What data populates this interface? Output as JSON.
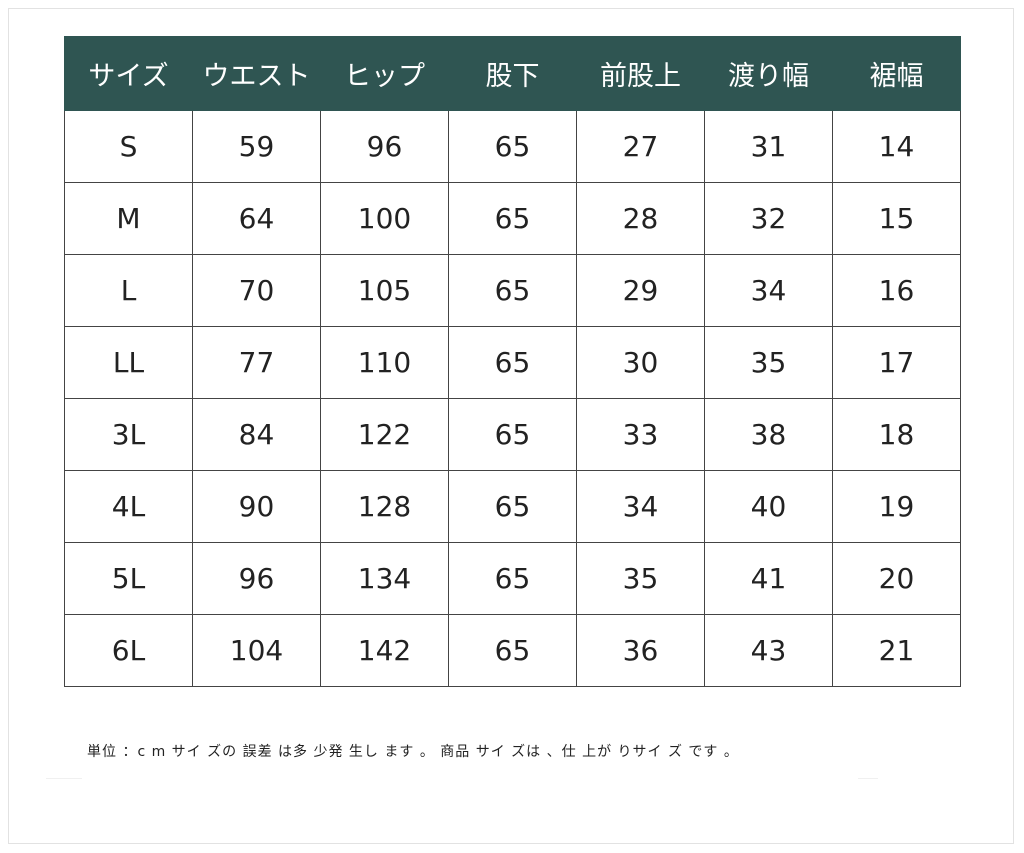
{
  "table": {
    "headers": [
      "サイズ",
      "ウエスト",
      "ヒップ",
      "股下",
      "前股上",
      "渡り幅",
      "裾幅"
    ],
    "rows": [
      [
        "S",
        "59",
        "96",
        "65",
        "27",
        "31",
        "14"
      ],
      [
        "M",
        "64",
        "100",
        "65",
        "28",
        "32",
        "15"
      ],
      [
        "L",
        "70",
        "105",
        "65",
        "29",
        "34",
        "16"
      ],
      [
        "LL",
        "77",
        "110",
        "65",
        "30",
        "35",
        "17"
      ],
      [
        "3L",
        "84",
        "122",
        "65",
        "33",
        "38",
        "18"
      ],
      [
        "4L",
        "90",
        "128",
        "65",
        "34",
        "40",
        "19"
      ],
      [
        "5L",
        "96",
        "134",
        "65",
        "35",
        "41",
        "20"
      ],
      [
        "6L",
        "104",
        "142",
        "65",
        "36",
        "43",
        "21"
      ]
    ]
  },
  "footnote": "単位 ：c m  サイ ズの 誤差 は多 少発 生し ます 。  商品 サイ ズは 、仕 上が りサイ ズ です 。",
  "colors": {
    "header_bg": "#2f5552",
    "header_text": "#ffffff",
    "grid_line": "#444444"
  }
}
